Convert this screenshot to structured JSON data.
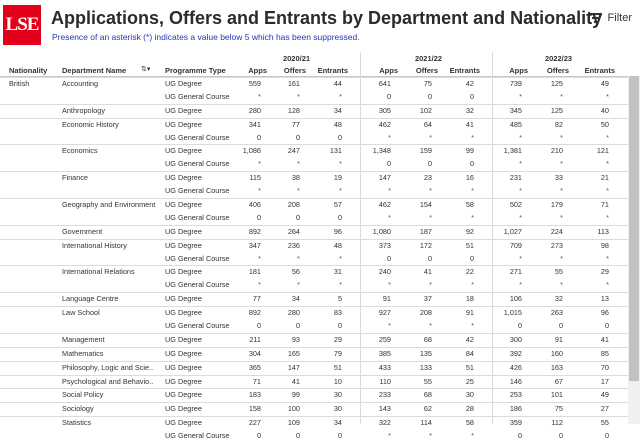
{
  "header": {
    "logo": "LSE",
    "title": "Applications, Offers and Entrants by Department and Nationality",
    "subtitle": "Presence of an asterisk (*) indicates a value below 5 which has been suppressed.",
    "filter_label": "Filter"
  },
  "years": [
    "2020/21",
    "2021/22",
    "2022/23"
  ],
  "columns": {
    "nationality": "Nationality",
    "department": "Department Name",
    "programme": "Programme Type",
    "apps": "Apps",
    "offers": "Offers",
    "entrants": "Entrants"
  },
  "rows": [
    {
      "nat": "British",
      "dept": "Accounting",
      "prog": "UG Degree",
      "v": [
        "559",
        "161",
        "44",
        "641",
        "75",
        "42",
        "739",
        "125",
        "49"
      ],
      "sep": true
    },
    {
      "nat": "",
      "dept": "",
      "prog": "UG General Course",
      "v": [
        "*",
        "*",
        "*",
        "0",
        "0",
        "0",
        "*",
        "*",
        "*"
      ],
      "sep": false
    },
    {
      "nat": "",
      "dept": "Anthropology",
      "prog": "UG Degree",
      "v": [
        "280",
        "128",
        "34",
        "305",
        "102",
        "32",
        "345",
        "125",
        "40"
      ],
      "sep": true
    },
    {
      "nat": "",
      "dept": "Economic History",
      "prog": "UG Degree",
      "v": [
        "341",
        "77",
        "48",
        "462",
        "64",
        "41",
        "485",
        "82",
        "50"
      ],
      "sep": true
    },
    {
      "nat": "",
      "dept": "",
      "prog": "UG General Course",
      "v": [
        "0",
        "0",
        "0",
        "*",
        "*",
        "*",
        "*",
        "*",
        "*"
      ],
      "sep": false
    },
    {
      "nat": "",
      "dept": "Economics",
      "prog": "UG Degree",
      "v": [
        "1,086",
        "247",
        "131",
        "1,348",
        "159",
        "99",
        "1,381",
        "210",
        "121"
      ],
      "sep": true
    },
    {
      "nat": "",
      "dept": "",
      "prog": "UG General Course",
      "v": [
        "*",
        "*",
        "*",
        "0",
        "0",
        "0",
        "*",
        "*",
        "*"
      ],
      "sep": false
    },
    {
      "nat": "",
      "dept": "Finance",
      "prog": "UG Degree",
      "v": [
        "115",
        "38",
        "19",
        "147",
        "23",
        "16",
        "231",
        "33",
        "21"
      ],
      "sep": true
    },
    {
      "nat": "",
      "dept": "",
      "prog": "UG General Course",
      "v": [
        "*",
        "*",
        "*",
        "*",
        "*",
        "*",
        "*",
        "*",
        "*"
      ],
      "sep": false
    },
    {
      "nat": "",
      "dept": "Geography and Environment",
      "prog": "UG Degree",
      "v": [
        "406",
        "208",
        "57",
        "462",
        "154",
        "58",
        "502",
        "179",
        "71"
      ],
      "sep": true
    },
    {
      "nat": "",
      "dept": "",
      "prog": "UG General Course",
      "v": [
        "0",
        "0",
        "0",
        "*",
        "*",
        "*",
        "*",
        "*",
        "*"
      ],
      "sep": false
    },
    {
      "nat": "",
      "dept": "Government",
      "prog": "UG Degree",
      "v": [
        "892",
        "264",
        "96",
        "1,080",
        "187",
        "92",
        "1,027",
        "224",
        "113"
      ],
      "sep": true
    },
    {
      "nat": "",
      "dept": "International History",
      "prog": "UG Degree",
      "v": [
        "347",
        "236",
        "48",
        "373",
        "172",
        "51",
        "709",
        "273",
        "98"
      ],
      "sep": true
    },
    {
      "nat": "",
      "dept": "",
      "prog": "UG General Course",
      "v": [
        "*",
        "*",
        "*",
        "0",
        "0",
        "0",
        "*",
        "*",
        "*"
      ],
      "sep": false
    },
    {
      "nat": "",
      "dept": "International Relations",
      "prog": "UG Degree",
      "v": [
        "181",
        "56",
        "31",
        "240",
        "41",
        "22",
        "271",
        "55",
        "29"
      ],
      "sep": true
    },
    {
      "nat": "",
      "dept": "",
      "prog": "UG General Course",
      "v": [
        "*",
        "*",
        "*",
        "*",
        "*",
        "*",
        "*",
        "*",
        "*"
      ],
      "sep": false
    },
    {
      "nat": "",
      "dept": "Language Centre",
      "prog": "UG Degree",
      "v": [
        "77",
        "34",
        "5",
        "91",
        "37",
        "18",
        "106",
        "32",
        "13"
      ],
      "sep": true
    },
    {
      "nat": "",
      "dept": "Law School",
      "prog": "UG Degree",
      "v": [
        "892",
        "280",
        "83",
        "927",
        "208",
        "91",
        "1,015",
        "263",
        "96"
      ],
      "sep": true
    },
    {
      "nat": "",
      "dept": "",
      "prog": "UG General Course",
      "v": [
        "0",
        "0",
        "0",
        "*",
        "*",
        "*",
        "0",
        "0",
        "0"
      ],
      "sep": false
    },
    {
      "nat": "",
      "dept": "Management",
      "prog": "UG Degree",
      "v": [
        "211",
        "93",
        "29",
        "259",
        "68",
        "42",
        "300",
        "91",
        "41"
      ],
      "sep": true
    },
    {
      "nat": "",
      "dept": "Mathematics",
      "prog": "UG Degree",
      "v": [
        "304",
        "165",
        "79",
        "385",
        "135",
        "84",
        "392",
        "160",
        "85"
      ],
      "sep": true
    },
    {
      "nat": "",
      "dept": "Philosophy, Logic and Scie..",
      "prog": "UG Degree",
      "v": [
        "365",
        "147",
        "51",
        "433",
        "133",
        "51",
        "426",
        "163",
        "70"
      ],
      "sep": true
    },
    {
      "nat": "",
      "dept": "Psychological and Behavio..",
      "prog": "UG Degree",
      "v": [
        "71",
        "41",
        "10",
        "110",
        "55",
        "25",
        "146",
        "67",
        "17"
      ],
      "sep": true
    },
    {
      "nat": "",
      "dept": "Social Policy",
      "prog": "UG Degree",
      "v": [
        "183",
        "99",
        "30",
        "233",
        "68",
        "30",
        "253",
        "101",
        "49"
      ],
      "sep": true
    },
    {
      "nat": "",
      "dept": "Sociology",
      "prog": "UG Degree",
      "v": [
        "158",
        "100",
        "30",
        "143",
        "62",
        "28",
        "186",
        "75",
        "27"
      ],
      "sep": true
    },
    {
      "nat": "",
      "dept": "Statistics",
      "prog": "UG Degree",
      "v": [
        "227",
        "109",
        "34",
        "322",
        "114",
        "58",
        "359",
        "112",
        "55"
      ],
      "sep": true
    },
    {
      "nat": "",
      "dept": "",
      "prog": "UG General Course",
      "v": [
        "0",
        "0",
        "0",
        "*",
        "*",
        "*",
        "0",
        "0",
        "0"
      ],
      "sep": false
    }
  ]
}
